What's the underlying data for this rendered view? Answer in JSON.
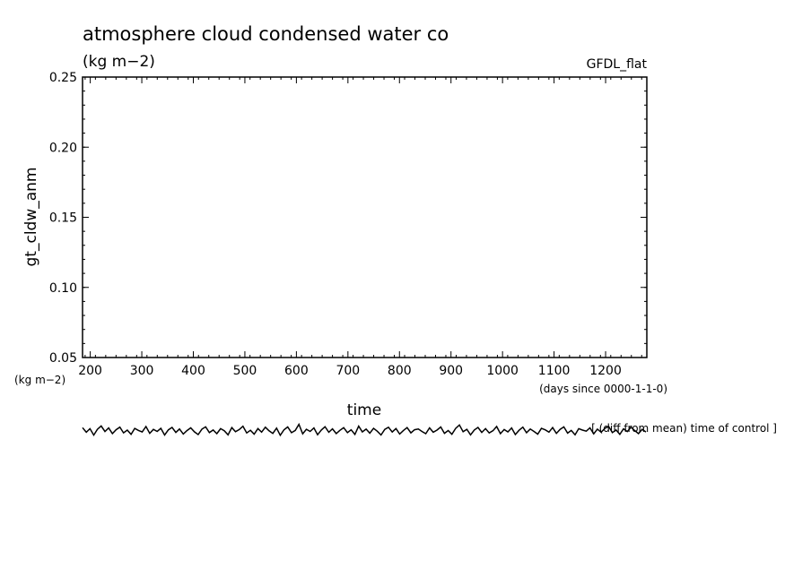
{
  "chart_data": {
    "type": "line",
    "title": "atmosphere cloud condensed water co",
    "subtitle_units": "(kg m−2)",
    "model_label": "GFDL_flat",
    "ylabel": "gt_cldw_anm",
    "ylabel_units": "(kg m−2)",
    "xlabel": "time",
    "xlabel_units": "(days since 0000-1-1-0)",
    "note": "[ (diff from mean) time of control ]",
    "xlim": [
      185,
      1280
    ],
    "ylim": [
      0.05,
      0.25
    ],
    "x_ticks": [
      "200",
      "300",
      "400",
      "500",
      "600",
      "700",
      "800",
      "900",
      "1000",
      "1100",
      "1200"
    ],
    "y_ticks": [
      "0.25",
      "0.20",
      "0.15",
      "0.10",
      "0.05"
    ],
    "series": [
      {
        "values": [
          0.0023,
          -0.0009,
          0.0016,
          -0.0029,
          0.0012,
          0.0035,
          -0.0004,
          0.0021,
          -0.0018,
          0.0009,
          0.0027,
          -0.0013,
          0.0006,
          -0.0024,
          0.0018,
          0.0004,
          -0.0007,
          0.0031,
          -0.0016,
          0.0011,
          -0.0003,
          0.0019,
          -0.0028,
          0.0008,
          0.0025,
          -0.001,
          0.0014,
          -0.0021,
          0.0003,
          0.0022,
          -0.0006,
          -0.0025,
          0.0013,
          0.0029,
          -0.0011,
          0.0007,
          -0.0019,
          0.0016,
          0.0002,
          -0.0027,
          0.0024,
          -0.0005,
          0.001,
          0.0033,
          -0.0014,
          0.0005,
          -0.0022,
          0.0017,
          -0.0008,
          0.0026,
          0.0001,
          -0.0017,
          0.002,
          -0.003,
          0.0009,
          0.0028,
          -0.0012,
          0.0004,
          0.0046,
          -0.002,
          0.0012,
          -0.0003,
          0.0021,
          -0.0026,
          0.0007,
          0.003,
          -0.0009,
          0.0015,
          -0.0018,
          0.0005,
          0.0023,
          -0.0011,
          0.0008,
          -0.0024,
          0.0034,
          -0.0006,
          0.0013,
          -0.0015,
          0.0019,
          -0.0002,
          -0.0028,
          0.0011,
          0.0026,
          -0.0007,
          0.0017,
          -0.0021,
          0.0004,
          0.0024,
          -0.0013,
          0.0009,
          0.0014,
          -0.0004,
          -0.0019,
          0.0022,
          -0.0009,
          0.0006,
          0.0028,
          -0.0016,
          0.0003,
          -0.0023,
          0.0018,
          0.0042,
          -0.0005,
          0.0012,
          -0.0027,
          0.0007,
          0.0025,
          -0.001,
          0.0016,
          -0.0014,
          0.0002,
          0.0031,
          -0.0019,
          0.001,
          -0.0006,
          0.0021,
          -0.0025,
          0.0005,
          0.0027,
          -0.0012,
          0.0014,
          -0.0003,
          -0.0022,
          0.0018,
          0.0008,
          -0.0008,
          0.0024,
          -0.0017,
          0.0011,
          0.0029,
          -0.0015,
          0.0004,
          -0.0026,
          0.0016,
          0.0006,
          -0.0001,
          0.0022,
          -0.002,
          0.0013,
          -0.0009,
          0.0019,
          0.0032,
          -0.0011,
          0.0007,
          -0.0024,
          0.0015,
          -0.0004,
          0.0026,
          0.0003,
          -0.0018,
          0.0012,
          -0.0007
        ]
      }
    ]
  }
}
